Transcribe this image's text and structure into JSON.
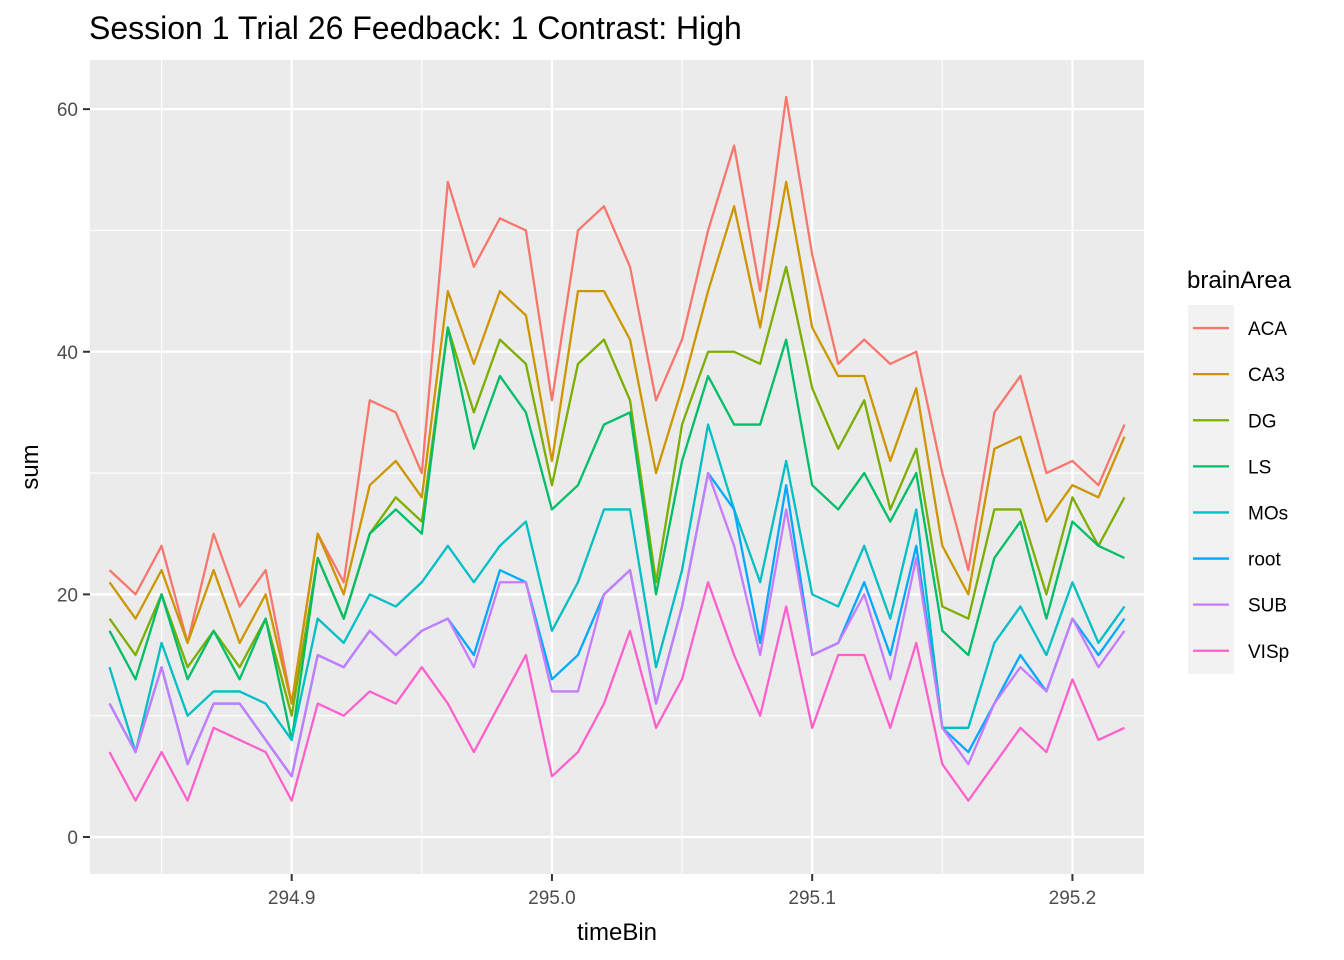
{
  "chart_data": {
    "type": "line",
    "title": "Session 1 Trial 26 Feedback: 1 Contrast: High",
    "xlabel": "timeBin",
    "ylabel": "sum",
    "xlim": [
      294.8225,
      295.2275
    ],
    "ylim": [
      -3.05,
      64.05
    ],
    "x_ticks": [
      294.9,
      295.0,
      295.1,
      295.2
    ],
    "x_tick_labels": [
      "294.9",
      "295.0",
      "295.1",
      "295.2"
    ],
    "y_ticks": [
      0,
      20,
      40,
      60
    ],
    "y_tick_labels": [
      "0",
      "20",
      "40",
      "60"
    ],
    "grid": true,
    "legend": {
      "title": "brainArea",
      "position": "right"
    },
    "x": [
      294.83,
      294.84,
      294.85,
      294.86,
      294.87,
      294.88,
      294.89,
      294.9,
      294.91,
      294.92,
      294.93,
      294.94,
      294.95,
      294.96,
      294.97,
      294.98,
      294.99,
      295.0,
      295.01,
      295.02,
      295.03,
      295.04,
      295.05,
      295.06,
      295.07,
      295.08,
      295.09,
      295.1,
      295.11,
      295.12,
      295.13,
      295.14,
      295.15,
      295.16,
      295.17,
      295.18,
      295.19,
      295.2,
      295.21,
      295.22
    ],
    "series": [
      {
        "name": "ACA",
        "color": "#F8766D",
        "values": [
          22,
          20,
          24,
          16,
          25,
          19,
          22,
          11,
          25,
          21,
          36,
          35,
          30,
          54,
          47,
          51,
          50,
          36,
          50,
          52,
          47,
          36,
          41,
          50,
          57,
          45,
          61,
          48,
          39,
          41,
          39,
          40,
          30,
          22,
          35,
          38,
          30,
          31,
          29,
          34
        ]
      },
      {
        "name": "CA3",
        "color": "#CD9600",
        "values": [
          21,
          18,
          22,
          16,
          22,
          16,
          20,
          11,
          25,
          20,
          29,
          31,
          28,
          45,
          39,
          45,
          43,
          31,
          45,
          45,
          41,
          30,
          37,
          45,
          52,
          42,
          54,
          42,
          38,
          38,
          31,
          37,
          24,
          20,
          32,
          33,
          26,
          29,
          28,
          33
        ]
      },
      {
        "name": "DG",
        "color": "#7CAE00",
        "values": [
          18,
          15,
          20,
          14,
          17,
          14,
          18,
          10,
          23,
          18,
          25,
          28,
          26,
          42,
          35,
          41,
          39,
          29,
          39,
          41,
          36,
          21,
          34,
          40,
          40,
          39,
          47,
          37,
          32,
          36,
          27,
          32,
          19,
          18,
          27,
          27,
          20,
          28,
          24,
          28
        ]
      },
      {
        "name": "LS",
        "color": "#00BE67",
        "values": [
          17,
          13,
          20,
          13,
          17,
          13,
          18,
          8,
          23,
          18,
          25,
          27,
          25,
          42,
          32,
          38,
          35,
          27,
          29,
          34,
          35,
          20,
          31,
          38,
          34,
          34,
          41,
          29,
          27,
          30,
          26,
          30,
          17,
          15,
          23,
          26,
          18,
          26,
          24,
          23
        ]
      },
      {
        "name": "MOs",
        "color": "#00BFC4",
        "values": [
          14,
          7,
          16,
          10,
          12,
          12,
          11,
          8,
          18,
          16,
          20,
          19,
          21,
          24,
          21,
          24,
          26,
          17,
          21,
          27,
          27,
          14,
          22,
          34,
          27,
          21,
          31,
          20,
          19,
          24,
          18,
          27,
          9,
          9,
          16,
          19,
          15,
          21,
          16,
          19
        ]
      },
      {
        "name": "root",
        "color": "#00A9FF",
        "values": [
          11,
          7,
          14,
          6,
          11,
          11,
          8,
          5,
          15,
          14,
          17,
          15,
          17,
          18,
          15,
          22,
          21,
          13,
          15,
          20,
          22,
          11,
          19,
          30,
          27,
          16,
          29,
          15,
          16,
          21,
          15,
          24,
          9,
          7,
          11,
          15,
          12,
          18,
          15,
          18
        ]
      },
      {
        "name": "SUB",
        "color": "#C77CFF",
        "values": [
          11,
          7,
          14,
          6,
          11,
          11,
          8,
          5,
          15,
          14,
          17,
          15,
          17,
          18,
          14,
          21,
          21,
          12,
          12,
          20,
          22,
          11,
          19,
          30,
          24,
          15,
          27,
          15,
          16,
          20,
          13,
          23,
          9,
          6,
          11,
          14,
          12,
          18,
          14,
          17
        ]
      },
      {
        "name": "VISp",
        "color": "#FF61CC",
        "values": [
          7,
          3,
          7,
          3,
          9,
          8,
          7,
          3,
          11,
          10,
          12,
          11,
          14,
          11,
          7,
          11,
          15,
          5,
          7,
          11,
          17,
          9,
          13,
          21,
          15,
          10,
          19,
          9,
          15,
          15,
          9,
          16,
          6,
          3,
          6,
          9,
          7,
          13,
          8,
          9
        ]
      }
    ]
  }
}
